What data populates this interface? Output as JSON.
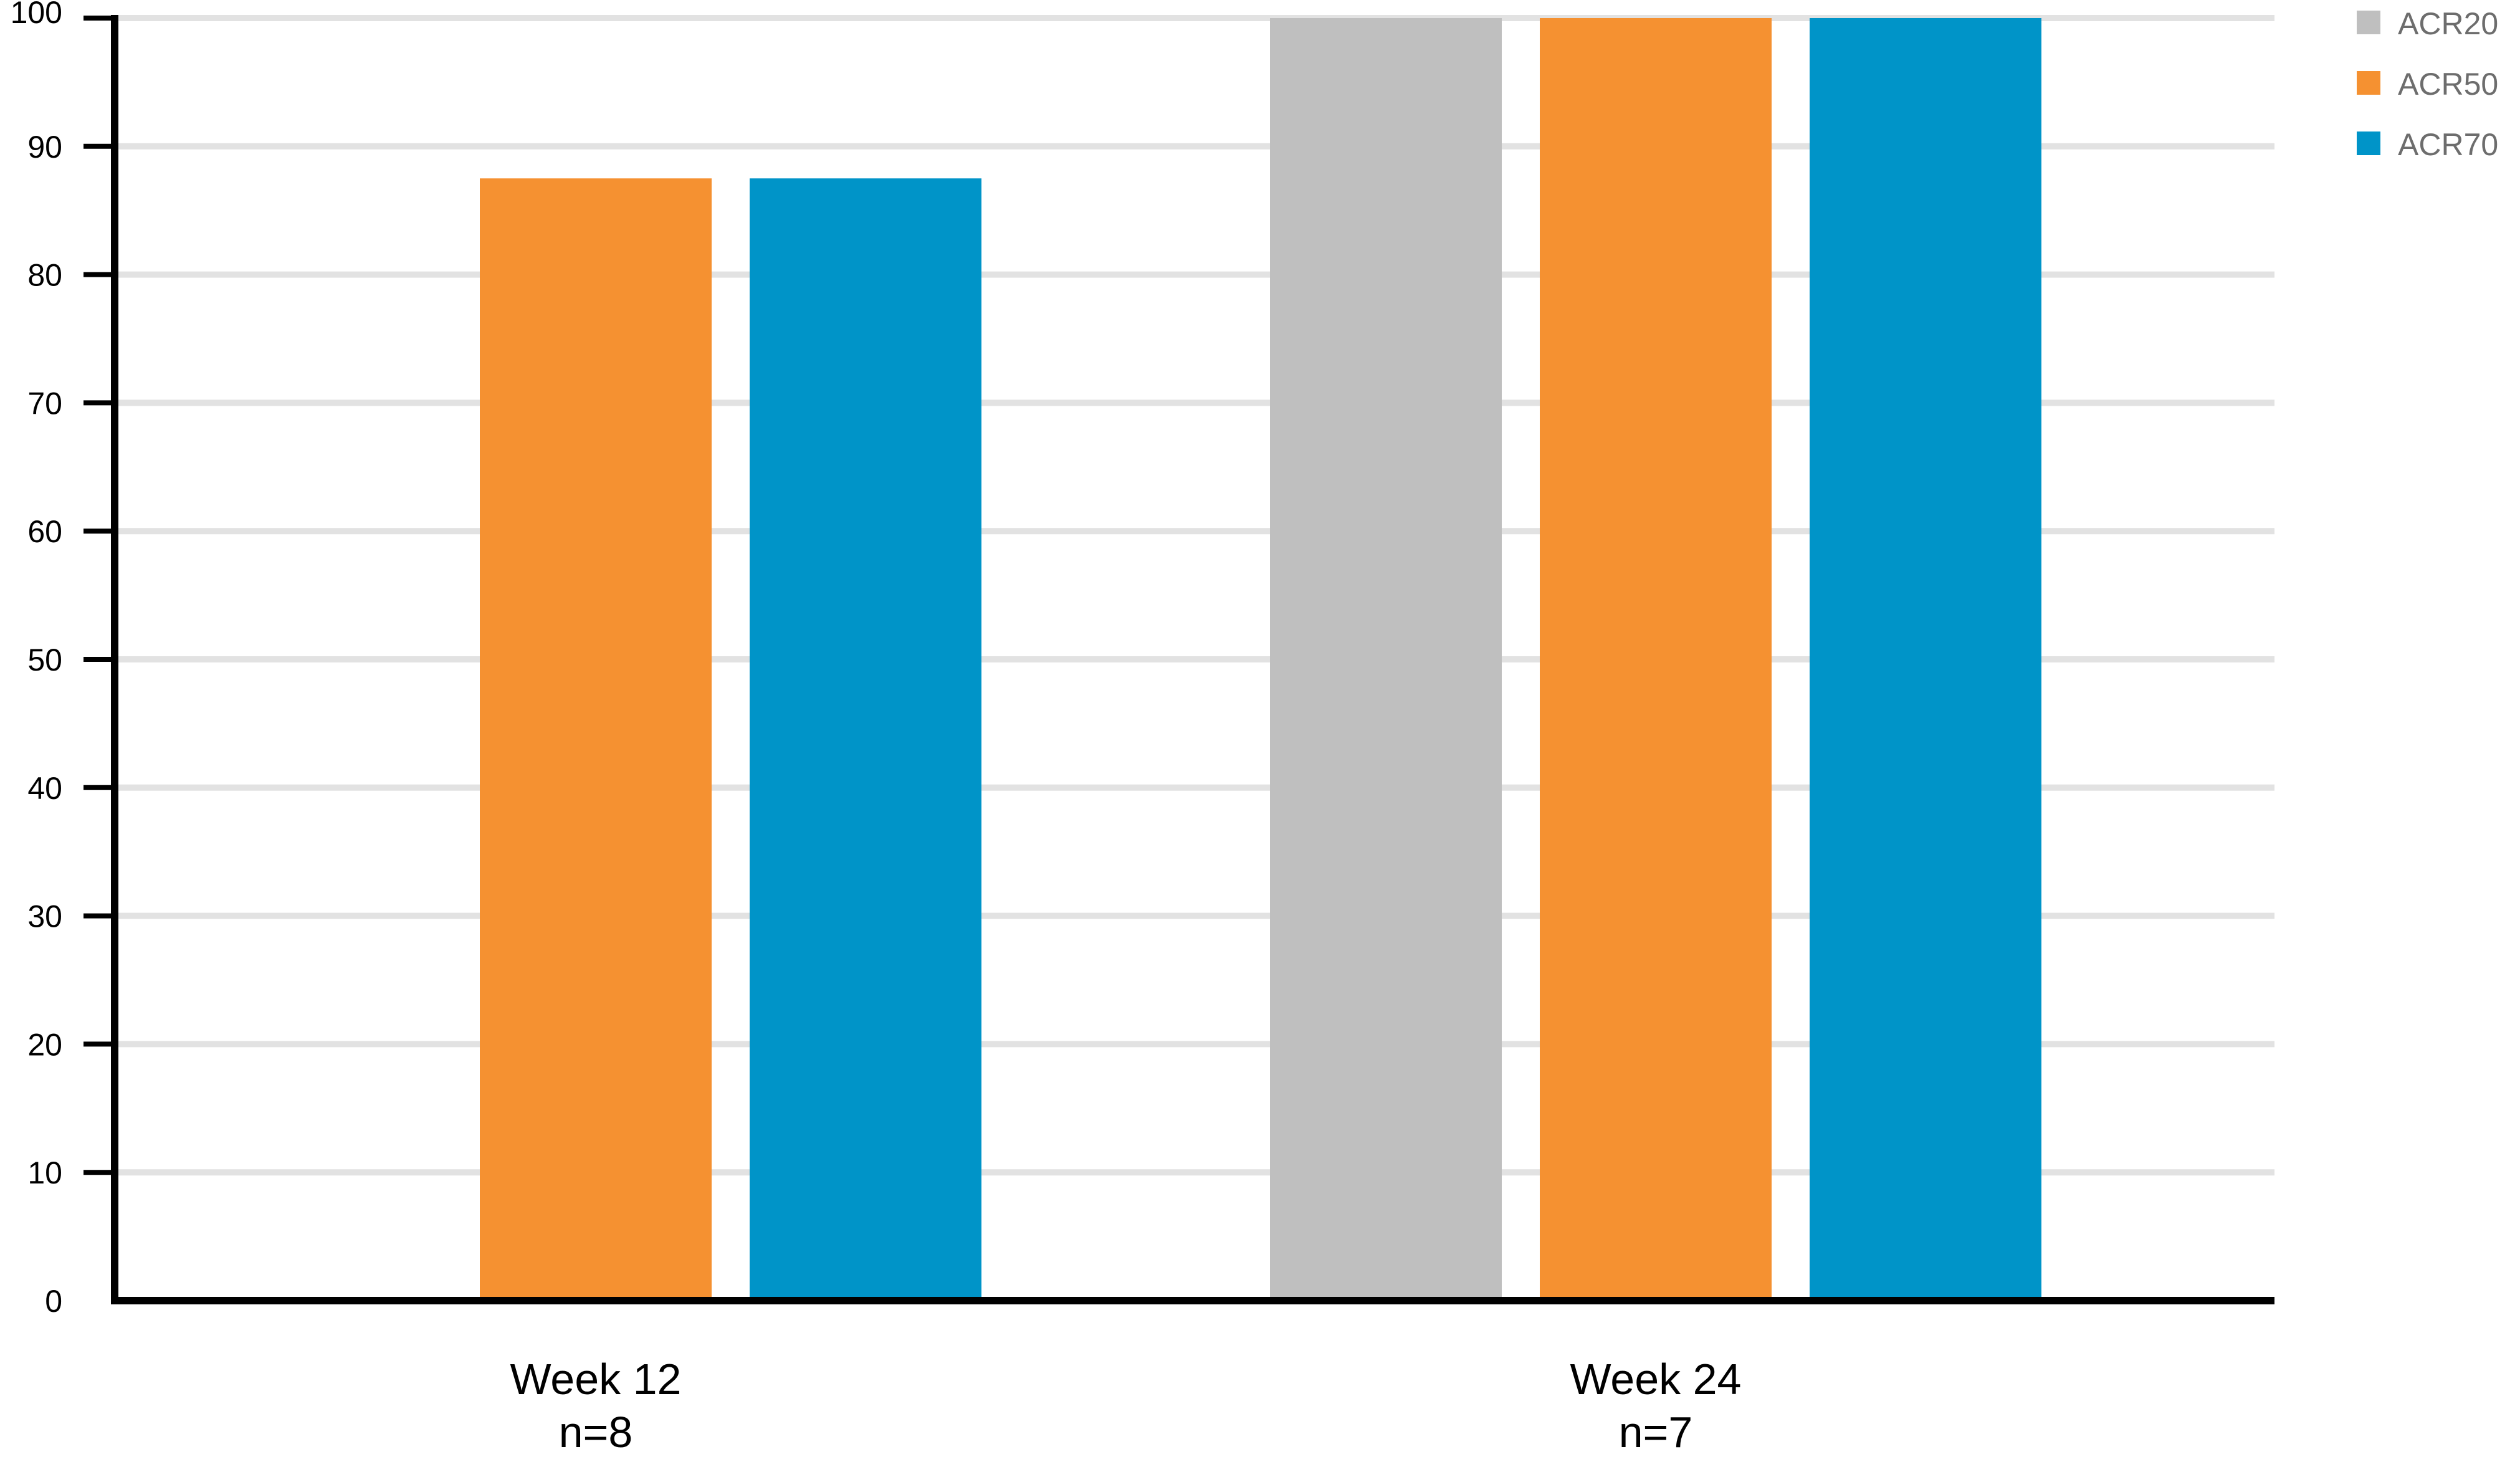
{
  "chart_data": {
    "type": "bar",
    "title": "",
    "xlabel": "",
    "ylabel": "",
    "ylim": [
      0,
      100
    ],
    "yticks": [
      0,
      10,
      20,
      30,
      40,
      50,
      60,
      70,
      80,
      90,
      100
    ],
    "grid": true,
    "legend_position": "top-right",
    "categories": [
      {
        "label": "Week 12",
        "sublabel": "n=8"
      },
      {
        "label": "Week 24",
        "sublabel": "n=7"
      }
    ],
    "series": [
      {
        "name": "ACR20",
        "color": "#bfbfbf",
        "values": [
          null,
          100
        ]
      },
      {
        "name": "ACR50",
        "color": "#f59131",
        "values": [
          87.5,
          100
        ]
      },
      {
        "name": "ACR70",
        "color": "#0094c8",
        "values": [
          87.5,
          100
        ]
      }
    ],
    "colors": {
      "axis": "#000000",
      "grid": "#e2e2e2",
      "legend_text": "#6d6d6d"
    }
  }
}
